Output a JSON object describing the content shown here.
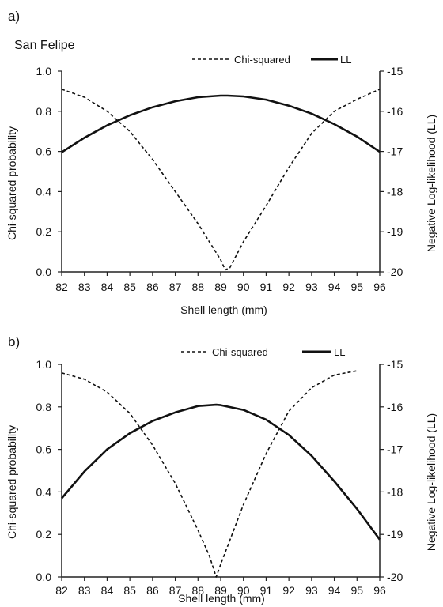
{
  "chart_data": [
    {
      "type": "line",
      "panel_label": "a)",
      "subtitle": "San Felipe",
      "xlabel": "Shell length (mm)",
      "ylabel": "Chi-squared probability",
      "y2label": "Negative Log-likelihood (LL)",
      "xlim": [
        82,
        96
      ],
      "ylim": [
        0,
        1
      ],
      "y2lim": [
        -20,
        -15
      ],
      "x_ticks": [
        82,
        83,
        84,
        85,
        86,
        87,
        88,
        89,
        90,
        91,
        92,
        93,
        94,
        95,
        96
      ],
      "y_ticks": [
        "0.0",
        "0.2",
        "0.4",
        "0.6",
        "0.8",
        "1.0"
      ],
      "y2_ticks": [
        "-20",
        "-19",
        "-18",
        "-17",
        "-16",
        "-15"
      ],
      "legend_position": "top-right",
      "grid": false,
      "series": [
        {
          "name": "Chi-squared",
          "axis": "left",
          "style": "dashed",
          "x": [
            82,
            83,
            84,
            85,
            86,
            87,
            88,
            89,
            89.2,
            89.4,
            90,
            91,
            92,
            93,
            94,
            95,
            96
          ],
          "y": [
            0.91,
            0.87,
            0.8,
            0.7,
            0.56,
            0.4,
            0.24,
            0.06,
            0.01,
            0.02,
            0.15,
            0.33,
            0.52,
            0.69,
            0.8,
            0.86,
            0.91
          ]
        },
        {
          "name": "LL",
          "axis": "right",
          "style": "solid",
          "x": [
            82,
            83,
            84,
            85,
            86,
            87,
            88,
            89,
            89.3,
            90,
            91,
            92,
            93,
            94,
            95,
            96
          ],
          "y": [
            -17.02,
            -16.66,
            -16.35,
            -16.1,
            -15.9,
            -15.75,
            -15.65,
            -15.61,
            -15.61,
            -15.63,
            -15.71,
            -15.86,
            -16.06,
            -16.32,
            -16.63,
            -17.01
          ]
        }
      ]
    },
    {
      "type": "line",
      "panel_label": "b)",
      "xlabel": "Shell length (mm)",
      "ylabel": "Chi-squared probability",
      "y2label": "Negative Log-likelihood (LL)",
      "xlim": [
        82,
        96
      ],
      "ylim": [
        0,
        1
      ],
      "y2lim": [
        -20,
        -15
      ],
      "x_ticks": [
        82,
        83,
        84,
        85,
        86,
        87,
        88,
        89,
        90,
        91,
        92,
        93,
        94,
        95,
        96
      ],
      "y_ticks": [
        "0.0",
        "0.2",
        "0.4",
        "0.6",
        "0.8",
        "1.0"
      ],
      "y2_ticks": [
        "-20",
        "-19",
        "-18",
        "-17",
        "-16",
        "-15"
      ],
      "legend_position": "top-right",
      "grid": false,
      "series": [
        {
          "name": "Chi-squared",
          "axis": "left",
          "style": "dashed",
          "x": [
            82,
            83,
            84,
            85,
            86,
            87,
            88,
            88.5,
            88.8,
            89,
            89.5,
            90,
            91,
            92,
            93,
            94,
            95
          ],
          "y": [
            0.96,
            0.93,
            0.87,
            0.77,
            0.62,
            0.44,
            0.22,
            0.1,
            0.0,
            0.06,
            0.2,
            0.34,
            0.58,
            0.78,
            0.89,
            0.95,
            0.97
          ]
        },
        {
          "name": "LL",
          "axis": "right",
          "style": "solid",
          "x": [
            82,
            83,
            84,
            85,
            86,
            87,
            88,
            88.8,
            89,
            90,
            91,
            92,
            93,
            94,
            95,
            96
          ],
          "y": [
            -18.15,
            -17.52,
            -17.0,
            -16.62,
            -16.33,
            -16.13,
            -15.98,
            -15.95,
            -15.96,
            -16.07,
            -16.3,
            -16.66,
            -17.15,
            -17.75,
            -18.4,
            -19.12
          ]
        }
      ]
    }
  ]
}
